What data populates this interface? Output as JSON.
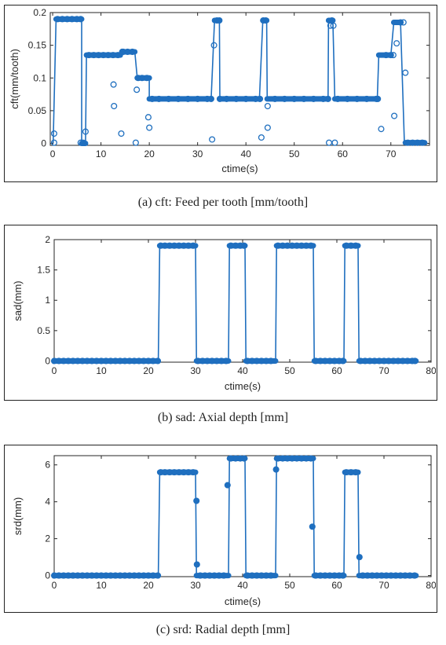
{
  "captions": [
    "(a) cft: Feed per tooth [mm/tooth]",
    "(b) sad: Axial depth [mm]",
    "(c) srd: Radial depth [mm]"
  ],
  "chart_data": [
    {
      "type": "line",
      "xlabel": "ctime(s)",
      "ylabel": "cft(mm/tooth)",
      "xlim": [
        -0.5,
        78
      ],
      "ylim": [
        -0.003,
        0.2
      ],
      "xticks": [
        0,
        10,
        20,
        30,
        40,
        50,
        60,
        70
      ],
      "yticks": [
        0,
        0.05,
        0.1,
        0.15,
        0.2
      ],
      "ytick_labels": [
        "0",
        "0.05",
        "0.1",
        "0.15",
        "0.2"
      ],
      "series_color": "#1f6fbf",
      "x": [
        0.1,
        0.7,
        6.0,
        6.0,
        6.8,
        7.0,
        14.0,
        14.5,
        17.0,
        17.5,
        20.0,
        20.0,
        32.8,
        33.5,
        34.5,
        34.6,
        42.8,
        43.5,
        44.3,
        44.4,
        57.0,
        57.1,
        58.0,
        58.4,
        67.2,
        67.5,
        70.0,
        70.6,
        72.0,
        72.8,
        73.0,
        77.0
      ],
      "y": [
        0,
        0.19,
        0.19,
        0,
        0,
        0.135,
        0.135,
        0.14,
        0.14,
        0.1,
        0.1,
        0.068,
        0.068,
        0.188,
        0.188,
        0.068,
        0.068,
        0.188,
        0.188,
        0.068,
        0.068,
        0.188,
        0.188,
        0.068,
        0.068,
        0.135,
        0.135,
        0.185,
        0.185,
        0.001,
        0.001,
        0.001
      ],
      "markers_x": [
        0.3,
        0.3,
        1.0,
        2.0,
        3.0,
        4.0,
        5.0,
        5.8,
        5.8,
        6.3,
        6.8,
        7.5,
        8.5,
        9.5,
        10.5,
        11.5,
        12.5,
        12.6,
        12.7,
        13.5,
        14.2,
        14.4,
        14.6,
        15.5,
        16.5,
        17.2,
        17.4,
        17.7,
        18.5,
        19.5,
        19.8,
        20.0,
        20.6,
        22,
        24,
        26,
        28,
        30,
        32,
        32.8,
        33.0,
        33.4,
        34.0,
        34.5,
        34.6,
        36,
        38,
        40,
        42,
        42.9,
        43.2,
        43.6,
        44.1,
        44.5,
        44.5,
        46,
        48,
        50,
        52,
        54,
        56,
        57.0,
        57.2,
        57.5,
        57.8,
        58.1,
        58.4,
        59,
        61,
        63,
        65,
        67,
        67.3,
        68,
        69,
        70.0,
        70.5,
        70.7,
        71.2,
        72.0,
        72.6,
        73.0,
        73.5,
        74.5,
        75.5,
        76.5
      ],
      "markers_y": [
        0.001,
        0.015,
        0.19,
        0.19,
        0.19,
        0.19,
        0.19,
        0.19,
        0.001,
        0.001,
        0.018,
        0.135,
        0.135,
        0.135,
        0.135,
        0.135,
        0.135,
        0.09,
        0.057,
        0.135,
        0.015,
        0.14,
        0.14,
        0.14,
        0.14,
        0.001,
        0.082,
        0.1,
        0.1,
        0.1,
        0.04,
        0.024,
        0.068,
        0.068,
        0.068,
        0.068,
        0.068,
        0.068,
        0.068,
        0.068,
        0.006,
        0.15,
        0.188,
        0.188,
        0.068,
        0.068,
        0.068,
        0.068,
        0.068,
        0.068,
        0.009,
        0.188,
        0.188,
        0.057,
        0.024,
        0.068,
        0.068,
        0.068,
        0.068,
        0.068,
        0.068,
        0.068,
        0.001,
        0.18,
        0.188,
        0.18,
        0.001,
        0.068,
        0.068,
        0.068,
        0.068,
        0.068,
        0.068,
        0.022,
        0.135,
        0.135,
        0.135,
        0.042,
        0.153,
        0.185,
        0.185,
        0.108,
        0.001,
        0.001,
        0.001,
        0.001
      ]
    },
    {
      "type": "line",
      "xlabel": "ctime(s)",
      "ylabel": "sad(mm)",
      "xlim": [
        0,
        80
      ],
      "ylim": [
        -0.02,
        2
      ],
      "xticks": [
        0,
        10,
        20,
        30,
        40,
        50,
        60,
        70,
        80
      ],
      "yticks": [
        0,
        0.5,
        1,
        1.5,
        2
      ],
      "ytick_labels": [
        "0",
        "0.5",
        "1",
        "1.5",
        "2"
      ],
      "series_color": "#1f6fbf",
      "x": [
        0,
        22.1,
        22.4,
        30.0,
        30.2,
        37.0,
        37.2,
        40.5,
        40.7,
        47.0,
        47.2,
        55.0,
        55.2,
        61.5,
        61.7,
        64.5,
        64.7,
        76.8
      ],
      "y": [
        0,
        0,
        1.9,
        1.9,
        0,
        0,
        1.9,
        1.9,
        0,
        0,
        1.9,
        1.9,
        0,
        0,
        1.9,
        1.9,
        0,
        0
      ],
      "markers_x": [
        0,
        1,
        2,
        3,
        4,
        5,
        6,
        7,
        8,
        9,
        10,
        11,
        12,
        13,
        14,
        15,
        16,
        17,
        18,
        19,
        20,
        21,
        22,
        22.6,
        23.5,
        24.5,
        25.5,
        26.5,
        27.5,
        28.5,
        29.5,
        30.5,
        31.5,
        32.5,
        33.5,
        34.5,
        35.5,
        36.5,
        37.5,
        38.5,
        39.5,
        40.3,
        41,
        42,
        43,
        44,
        45,
        46,
        47.5,
        48.5,
        49.5,
        50.5,
        51.5,
        52.5,
        53.5,
        54.5,
        55.5,
        56.5,
        57.5,
        58.5,
        59.5,
        60.5,
        61.3,
        62,
        63,
        64,
        65,
        66,
        67,
        68,
        69,
        70,
        71,
        72,
        73,
        74,
        75,
        76,
        76.6
      ],
      "markers_y": [
        0,
        0,
        0,
        0,
        0,
        0,
        0,
        0,
        0,
        0,
        0,
        0,
        0,
        0,
        0,
        0,
        0,
        0,
        0,
        0,
        0,
        0,
        0,
        1.9,
        1.9,
        1.9,
        1.9,
        1.9,
        1.9,
        1.9,
        1.9,
        0,
        0,
        0,
        0,
        0,
        0,
        0,
        1.9,
        1.9,
        1.9,
        1.9,
        0,
        0,
        0,
        0,
        0,
        0,
        1.9,
        1.9,
        1.9,
        1.9,
        1.9,
        1.9,
        1.9,
        1.9,
        0,
        0,
        0,
        0,
        0,
        0,
        0,
        1.9,
        1.9,
        1.9,
        0,
        0,
        0,
        0,
        0,
        0,
        0,
        0,
        0,
        0,
        0,
        0,
        0
      ]
    },
    {
      "type": "line",
      "xlabel": "ctime(s)",
      "ylabel": "srd(mm)",
      "xlim": [
        0,
        80
      ],
      "ylim": [
        -0.06,
        6.5
      ],
      "xticks": [
        0,
        10,
        20,
        30,
        40,
        50,
        60,
        70,
        80
      ],
      "yticks": [
        0,
        2,
        4,
        6
      ],
      "ytick_labels": [
        "0",
        "2",
        "4",
        "6"
      ],
      "series_color": "#1f6fbf",
      "x": [
        0,
        22.1,
        22.4,
        30.0,
        30.2,
        37.0,
        37.2,
        40.5,
        40.7,
        47.0,
        47.2,
        55.0,
        55.2,
        61.5,
        61.7,
        64.5,
        64.7,
        76.8
      ],
      "y": [
        0,
        0,
        5.6,
        5.6,
        0,
        0,
        6.35,
        6.35,
        0,
        0,
        6.35,
        6.35,
        0,
        0,
        5.6,
        5.6,
        0,
        0
      ],
      "markers_x": [
        0,
        1,
        2,
        3,
        4,
        5,
        6,
        7,
        8,
        9,
        10,
        11,
        12,
        13,
        14,
        15,
        16,
        17,
        18,
        19,
        20,
        21,
        22,
        22.6,
        23.5,
        24.5,
        25.5,
        26.5,
        27.5,
        28.5,
        29.5,
        30.2,
        30.3,
        31,
        32,
        33,
        34,
        35,
        36,
        36.8,
        37.5,
        38.5,
        39.5,
        40.3,
        41,
        42,
        43,
        44,
        45,
        46,
        47.1,
        47.5,
        48.5,
        49.5,
        50.5,
        51.5,
        52.5,
        53.5,
        54.5,
        54.8,
        55.5,
        56.5,
        57.5,
        58.5,
        59.5,
        60.5,
        61.3,
        62,
        63,
        64,
        64.8,
        65.5,
        66.5,
        67.5,
        68.5,
        69.5,
        70.5,
        71.5,
        72.5,
        73.5,
        74.5,
        75.5,
        76.5
      ],
      "markers_y": [
        0,
        0,
        0,
        0,
        0,
        0,
        0,
        0,
        0,
        0,
        0,
        0,
        0,
        0,
        0,
        0,
        0,
        0,
        0,
        0,
        0,
        0,
        0,
        5.6,
        5.6,
        5.6,
        5.6,
        5.6,
        5.6,
        5.6,
        5.6,
        4.05,
        0.6,
        0,
        0,
        0,
        0,
        0,
        0,
        4.9,
        6.35,
        6.35,
        6.35,
        6.35,
        0,
        0,
        0,
        0,
        0,
        0,
        5.75,
        6.35,
        6.35,
        6.35,
        6.35,
        6.35,
        6.35,
        6.35,
        6.35,
        2.65,
        0,
        0,
        0,
        0,
        0,
        0,
        0,
        5.6,
        5.6,
        5.6,
        1.0,
        0,
        0,
        0,
        0,
        0,
        0,
        0,
        0,
        0,
        0,
        0,
        0
      ]
    }
  ]
}
